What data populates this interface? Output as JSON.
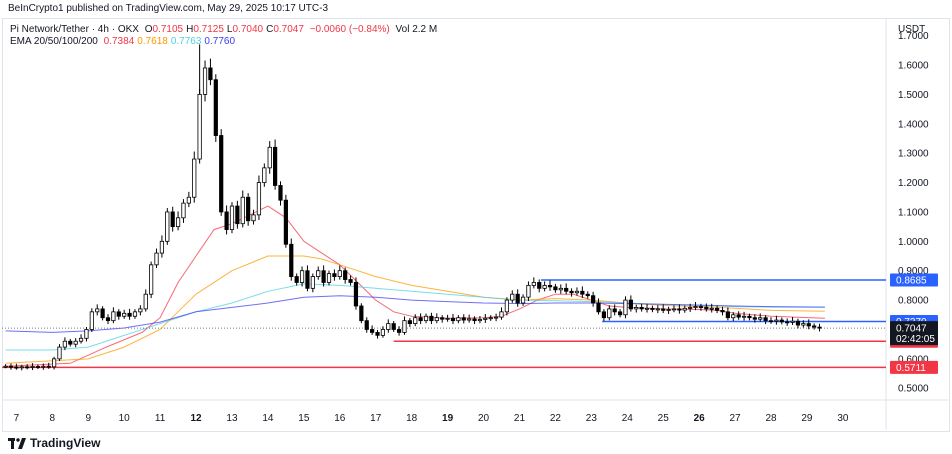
{
  "header": {
    "published_text": "BeInCrypto1 published on TradingView.com, May 29, 2025 10:17 UTC-3"
  },
  "legend": {
    "symbol": "Pi Network/Tether · 4h · OKX",
    "ohlc": [
      {
        "label": "O",
        "value": "0.7105"
      },
      {
        "label": "H",
        "value": "0.7125"
      },
      {
        "label": "L",
        "value": "0.7040"
      },
      {
        "label": "C",
        "value": "0.7047"
      }
    ],
    "change": "−0.0060 (−0.84%)",
    "volume": "Vol 2.2 M",
    "ema_label": "EMA 20/50/100/200",
    "ema_values": [
      {
        "value": "0.7384",
        "color": "#f23645"
      },
      {
        "value": "0.7618",
        "color": "#ff9800"
      },
      {
        "value": "0.7763",
        "color": "#4dd0e1"
      },
      {
        "value": "0.7760",
        "color": "#3d3df5"
      }
    ]
  },
  "axis": {
    "unit": "USDT"
  },
  "footer": {
    "brand": "TradingView"
  },
  "chart_data": {
    "type": "candlestick",
    "timeframe": "4h",
    "y_ticks": [
      0.5,
      0.6,
      0.7,
      0.8,
      0.9,
      1.0,
      1.1,
      1.2,
      1.3,
      1.4,
      1.5,
      1.6,
      1.7
    ],
    "y_tick_labels": [
      "0.5000",
      "0.6000",
      "0.7000",
      "0.8000",
      "0.9000",
      "1.0000",
      "1.1000",
      "1.2000",
      "1.3000",
      "1.4000",
      "1.5000",
      "1.6000",
      "1.7000"
    ],
    "ylim": [
      0.46,
      1.76
    ],
    "x_ticks": [
      {
        "label": "7",
        "day": 7,
        "bold": false
      },
      {
        "label": "8",
        "day": 8,
        "bold": false
      },
      {
        "label": "9",
        "day": 9,
        "bold": false
      },
      {
        "label": "10",
        "day": 10,
        "bold": false
      },
      {
        "label": "11",
        "day": 11,
        "bold": false
      },
      {
        "label": "12",
        "day": 12,
        "bold": true
      },
      {
        "label": "13",
        "day": 13,
        "bold": false
      },
      {
        "label": "14",
        "day": 14,
        "bold": false
      },
      {
        "label": "15",
        "day": 15,
        "bold": false
      },
      {
        "label": "16",
        "day": 16,
        "bold": false
      },
      {
        "label": "17",
        "day": 17,
        "bold": false
      },
      {
        "label": "18",
        "day": 18,
        "bold": false
      },
      {
        "label": "19",
        "day": 19,
        "bold": true
      },
      {
        "label": "20",
        "day": 20,
        "bold": false
      },
      {
        "label": "21",
        "day": 21,
        "bold": false
      },
      {
        "label": "22",
        "day": 22,
        "bold": false
      },
      {
        "label": "23",
        "day": 23,
        "bold": false
      },
      {
        "label": "24",
        "day": 24,
        "bold": false
      },
      {
        "label": "25",
        "day": 25,
        "bold": false
      },
      {
        "label": "26",
        "day": 26,
        "bold": true
      },
      {
        "label": "27",
        "day": 27,
        "bold": false
      },
      {
        "label": "28",
        "day": 28,
        "bold": false
      },
      {
        "label": "29",
        "day": 29,
        "bold": false
      },
      {
        "label": "30",
        "day": 30,
        "bold": false
      }
    ],
    "xlim_day": [
      6.6,
      31.2
    ],
    "candle_days": [
      6.7,
      6.85,
      7.0,
      7.15,
      7.3,
      7.45,
      7.6,
      7.75,
      7.9,
      8.05,
      8.2,
      8.35,
      8.5,
      8.65,
      8.8,
      8.95,
      9.1,
      9.25,
      9.4,
      9.55,
      9.7,
      9.85,
      10.0,
      10.15,
      10.3,
      10.45,
      10.6,
      10.75,
      10.9,
      11.05,
      11.2,
      11.35,
      11.5,
      11.65,
      11.8,
      11.95,
      12.1,
      12.25,
      12.4,
      12.55,
      12.7,
      12.85,
      13.0,
      13.15,
      13.3,
      13.45,
      13.6,
      13.75,
      13.9,
      14.05,
      14.2,
      14.35,
      14.5,
      14.65,
      14.8,
      14.95,
      15.1,
      15.25,
      15.4,
      15.55,
      15.7,
      15.85,
      16.0,
      16.15,
      16.3,
      16.45,
      16.6,
      16.75,
      16.9,
      17.05,
      17.2,
      17.35,
      17.5,
      17.65,
      17.8,
      17.95,
      18.1,
      18.25,
      18.4,
      18.55,
      18.7,
      18.85,
      19.0,
      19.15,
      19.3,
      19.45,
      19.6,
      19.75,
      19.9,
      20.05,
      20.2,
      20.35,
      20.5,
      20.65,
      20.8,
      20.95,
      21.1,
      21.25,
      21.4,
      21.55,
      21.7,
      21.85,
      22.0,
      22.15,
      22.3,
      22.45,
      22.6,
      22.75,
      22.9,
      23.05,
      23.2,
      23.35,
      23.5,
      23.65,
      23.8,
      23.95,
      24.1,
      24.25,
      24.4,
      24.55,
      24.7,
      24.85,
      25.0,
      25.15,
      25.3,
      25.45,
      25.6,
      25.75,
      25.9,
      26.05,
      26.2,
      26.35,
      26.5,
      26.65,
      26.8,
      26.95,
      27.1,
      27.25,
      27.4,
      27.55,
      27.7,
      27.85,
      28.0,
      28.15,
      28.3,
      28.45,
      28.6,
      28.75,
      28.9,
      29.05,
      29.2,
      29.35
    ],
    "close": [
      0.575,
      0.572,
      0.57,
      0.573,
      0.571,
      0.574,
      0.572,
      0.575,
      0.573,
      0.6,
      0.64,
      0.66,
      0.65,
      0.66,
      0.67,
      0.7,
      0.76,
      0.77,
      0.74,
      0.73,
      0.76,
      0.745,
      0.755,
      0.745,
      0.76,
      0.77,
      0.82,
      0.92,
      0.96,
      1.0,
      1.1,
      1.05,
      1.08,
      1.13,
      1.15,
      1.28,
      1.5,
      1.59,
      1.55,
      1.36,
      1.1,
      1.04,
      1.12,
      1.06,
      1.15,
      1.07,
      1.09,
      1.2,
      1.25,
      1.32,
      1.19,
      1.14,
      0.99,
      0.88,
      0.86,
      0.9,
      0.84,
      0.88,
      0.9,
      0.86,
      0.89,
      0.88,
      0.9,
      0.87,
      0.86,
      0.78,
      0.73,
      0.7,
      0.69,
      0.68,
      0.7,
      0.72,
      0.7,
      0.69,
      0.73,
      0.72,
      0.74,
      0.73,
      0.745,
      0.73,
      0.74,
      0.735,
      0.738,
      0.73,
      0.74,
      0.732,
      0.736,
      0.73,
      0.734,
      0.738,
      0.74,
      0.742,
      0.76,
      0.8,
      0.82,
      0.79,
      0.81,
      0.85,
      0.86,
      0.84,
      0.85,
      0.845,
      0.835,
      0.84,
      0.83,
      0.825,
      0.83,
      0.82,
      0.815,
      0.79,
      0.76,
      0.74,
      0.77,
      0.76,
      0.75,
      0.8,
      0.77,
      0.775,
      0.77,
      0.772,
      0.768,
      0.77,
      0.765,
      0.768,
      0.77,
      0.766,
      0.772,
      0.775,
      0.778,
      0.776,
      0.77,
      0.772,
      0.765,
      0.76,
      0.74,
      0.75,
      0.742,
      0.745,
      0.74,
      0.735,
      0.74,
      0.73,
      0.728,
      0.732,
      0.726,
      0.724,
      0.728,
      0.715,
      0.72,
      0.712,
      0.708,
      0.7047
    ],
    "ema_series": [
      {
        "period": 20,
        "color": "#f23645",
        "points": [
          [
            6.7,
            0.575
          ],
          [
            8.5,
            0.585
          ],
          [
            9.5,
            0.64
          ],
          [
            10.5,
            0.69
          ],
          [
            11.0,
            0.74
          ],
          [
            11.5,
            0.86
          ],
          [
            12.0,
            0.95
          ],
          [
            12.5,
            1.04
          ],
          [
            13.0,
            1.06
          ],
          [
            13.5,
            1.09
          ],
          [
            14.0,
            1.12
          ],
          [
            14.5,
            1.08
          ],
          [
            15.0,
            1.0
          ],
          [
            15.5,
            0.96
          ],
          [
            16.0,
            0.92
          ],
          [
            16.5,
            0.86
          ],
          [
            17.0,
            0.8
          ],
          [
            17.5,
            0.76
          ],
          [
            18.0,
            0.745
          ],
          [
            19.0,
            0.738
          ],
          [
            20.0,
            0.74
          ],
          [
            20.5,
            0.745
          ],
          [
            21.0,
            0.77
          ],
          [
            21.5,
            0.8
          ],
          [
            22.0,
            0.82
          ],
          [
            22.5,
            0.82
          ],
          [
            23.0,
            0.8
          ],
          [
            23.5,
            0.78
          ],
          [
            24.0,
            0.775
          ],
          [
            25.0,
            0.77
          ],
          [
            26.0,
            0.768
          ],
          [
            26.5,
            0.765
          ],
          [
            27.0,
            0.755
          ],
          [
            28.0,
            0.745
          ],
          [
            29.5,
            0.738
          ]
        ]
      },
      {
        "period": 50,
        "color": "#ff9800",
        "points": [
          [
            6.7,
            0.585
          ],
          [
            9.0,
            0.6
          ],
          [
            10.0,
            0.64
          ],
          [
            11.0,
            0.7
          ],
          [
            11.5,
            0.76
          ],
          [
            12.0,
            0.82
          ],
          [
            13.0,
            0.9
          ],
          [
            14.0,
            0.95
          ],
          [
            15.0,
            0.95
          ],
          [
            15.5,
            0.94
          ],
          [
            16.0,
            0.92
          ],
          [
            17.0,
            0.88
          ],
          [
            18.0,
            0.85
          ],
          [
            19.0,
            0.83
          ],
          [
            20.0,
            0.81
          ],
          [
            21.0,
            0.8
          ],
          [
            22.0,
            0.805
          ],
          [
            23.0,
            0.8
          ],
          [
            24.0,
            0.79
          ],
          [
            25.0,
            0.782
          ],
          [
            26.0,
            0.778
          ],
          [
            27.0,
            0.772
          ],
          [
            28.0,
            0.765
          ],
          [
            29.5,
            0.762
          ]
        ]
      },
      {
        "period": 100,
        "color": "#4dd0e1",
        "points": [
          [
            6.7,
            0.63
          ],
          [
            8.0,
            0.63
          ],
          [
            9.0,
            0.64
          ],
          [
            10.0,
            0.68
          ],
          [
            11.0,
            0.72
          ],
          [
            12.0,
            0.76
          ],
          [
            13.0,
            0.79
          ],
          [
            14.0,
            0.83
          ],
          [
            15.0,
            0.855
          ],
          [
            16.0,
            0.85
          ],
          [
            17.0,
            0.84
          ],
          [
            18.0,
            0.83
          ],
          [
            19.0,
            0.82
          ],
          [
            20.0,
            0.81
          ],
          [
            21.0,
            0.8
          ],
          [
            22.0,
            0.798
          ],
          [
            23.0,
            0.795
          ],
          [
            24.0,
            0.79
          ],
          [
            25.0,
            0.785
          ],
          [
            26.0,
            0.782
          ],
          [
            27.0,
            0.778
          ],
          [
            28.0,
            0.776
          ],
          [
            29.5,
            0.776
          ]
        ]
      },
      {
        "period": 200,
        "color": "#3d3df5",
        "points": [
          [
            6.7,
            0.695
          ],
          [
            8.0,
            0.69
          ],
          [
            9.0,
            0.695
          ],
          [
            10.0,
            0.705
          ],
          [
            11.0,
            0.725
          ],
          [
            12.0,
            0.76
          ],
          [
            13.0,
            0.775
          ],
          [
            14.0,
            0.79
          ],
          [
            15.0,
            0.81
          ],
          [
            16.0,
            0.815
          ],
          [
            17.0,
            0.81
          ],
          [
            18.0,
            0.8
          ],
          [
            19.0,
            0.795
          ],
          [
            20.0,
            0.79
          ],
          [
            21.0,
            0.788
          ],
          [
            22.0,
            0.79
          ],
          [
            23.0,
            0.79
          ],
          [
            24.0,
            0.788
          ],
          [
            25.0,
            0.786
          ],
          [
            26.0,
            0.783
          ],
          [
            27.0,
            0.78
          ],
          [
            28.0,
            0.778
          ],
          [
            29.5,
            0.776
          ]
        ]
      }
    ],
    "levels": [
      {
        "value": 0.8685,
        "label": "0.8685",
        "color": "#2962ff",
        "from_day": 21.6
      },
      {
        "value": 0.727,
        "label": "0.7270",
        "color": "#2962ff",
        "from_day": 23.3
      },
      {
        "value": 0.66,
        "label": "0.6600",
        "color": "#f23645",
        "from_day": 17.5
      },
      {
        "value": 0.5711,
        "label": "0.5711",
        "color": "#f23645",
        "from_day": 6.6
      }
    ],
    "current": {
      "value": 0.7047,
      "label": "0.7047",
      "countdown": "02:42:05",
      "color": "#131722"
    },
    "y_tick_0_6_label": "0.6000"
  }
}
